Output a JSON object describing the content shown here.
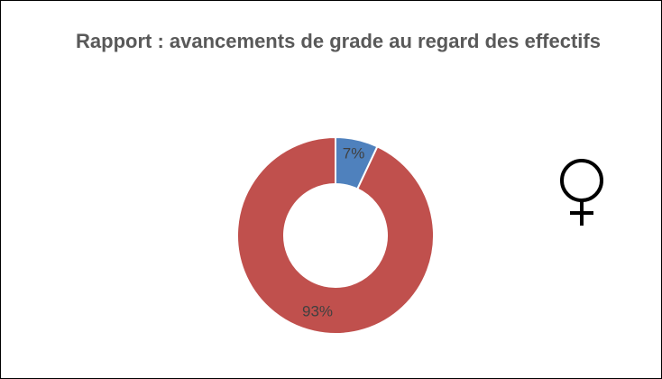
{
  "chart_data": {
    "type": "donut",
    "title": "Rapport : avancements de grade au regard des effectifs",
    "categories": [
      null,
      null
    ],
    "values": [
      7,
      93
    ],
    "value_labels": [
      "7%",
      "93%"
    ],
    "colors": [
      "#4f81bd",
      "#c0504d"
    ]
  }
}
